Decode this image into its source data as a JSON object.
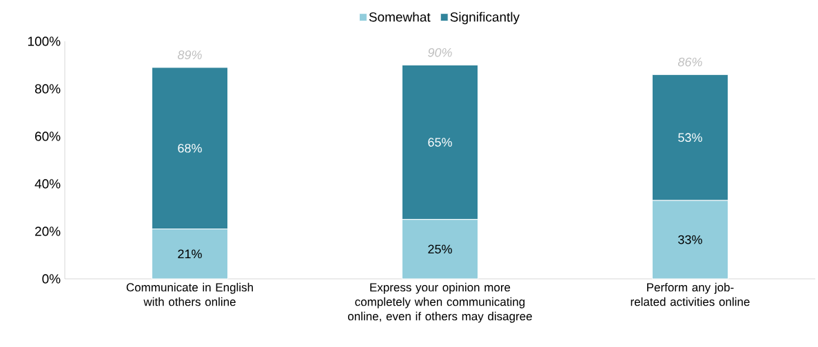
{
  "chart_data": {
    "type": "bar",
    "stacked": true,
    "categories": [
      "Communicate in English with others online",
      "Express your opinion more completely when communicating online, even if others may disagree",
      "Perform any job-related activities online"
    ],
    "series": [
      {
        "name": "Somewhat",
        "color": "#92cddc",
        "values": [
          21,
          25,
          33
        ],
        "value_labels": [
          "21%",
          "25%",
          "33%"
        ]
      },
      {
        "name": "Significantly",
        "color": "#31849b",
        "values": [
          68,
          65,
          53
        ],
        "value_labels": [
          "68%",
          "65%",
          "53%"
        ]
      }
    ],
    "totals": [
      "89%",
      "90%",
      "86%"
    ],
    "ylim": [
      0,
      100
    ],
    "yticks": [
      {
        "value": 0,
        "label": "0%"
      },
      {
        "value": 20,
        "label": "20%"
      },
      {
        "value": 40,
        "label": "40%"
      },
      {
        "value": 60,
        "label": "60%"
      },
      {
        "value": 80,
        "label": "80%"
      },
      {
        "value": 100,
        "label": "100%"
      }
    ],
    "grid": false,
    "legend": "top"
  }
}
